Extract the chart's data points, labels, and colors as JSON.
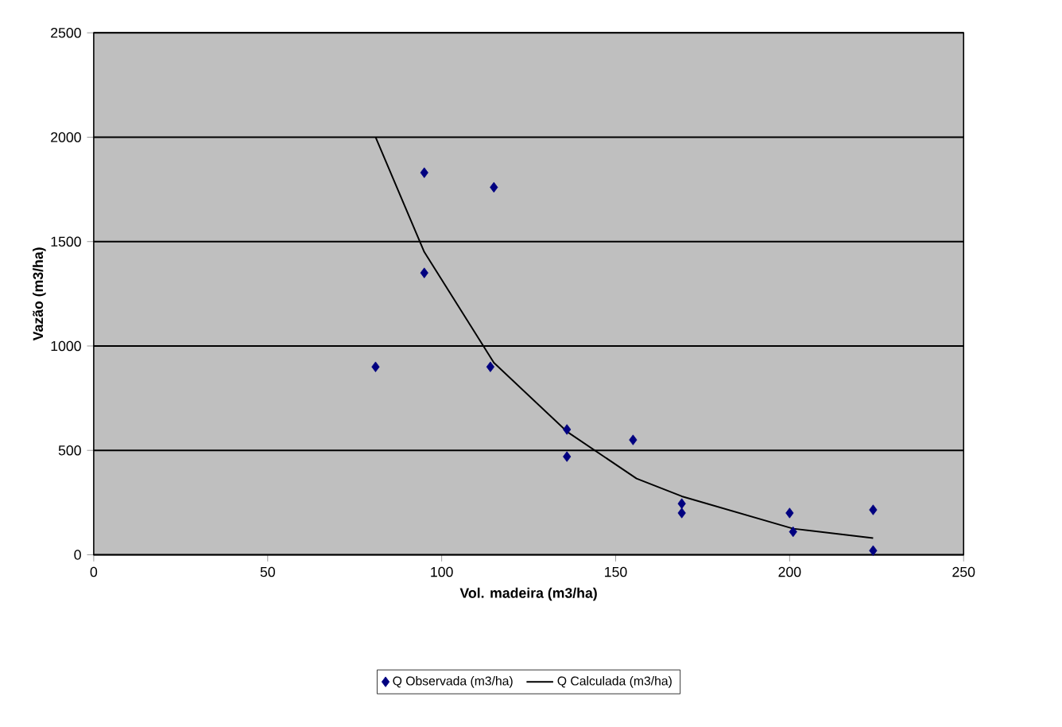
{
  "chart_data": {
    "type": "scatter",
    "xlabel": "Vol. madeira (m3/ha)",
    "ylabel": "Vazão (m3/ha)",
    "xlim": [
      0,
      250
    ],
    "xticks": [
      0,
      50,
      100,
      150,
      200,
      250
    ],
    "ylim": [
      0,
      2500
    ],
    "yticks": [
      0,
      500,
      1000,
      1500,
      2000,
      2500
    ],
    "grid": "y",
    "legend": "bottom",
    "series": [
      {
        "name": "Q Observada (m3/ha)",
        "marker": "diamond",
        "color": "#000080",
        "x": [
          81,
          95,
          95,
          114,
          115,
          136,
          136,
          155,
          169,
          169,
          200,
          201,
          224,
          224
        ],
        "values": [
          900,
          1830,
          1350,
          900,
          1760,
          600,
          470,
          550,
          245,
          200,
          200,
          110,
          215,
          20
        ]
      },
      {
        "name": "Q Calculada (m3/ha)",
        "type": "line",
        "marker": "none",
        "color": "#000000",
        "x": [
          81,
          95,
          115,
          136,
          156,
          169,
          201,
          224
        ],
        "values": [
          2000,
          1450,
          920,
          590,
          365,
          280,
          125,
          80
        ]
      }
    ]
  }
}
